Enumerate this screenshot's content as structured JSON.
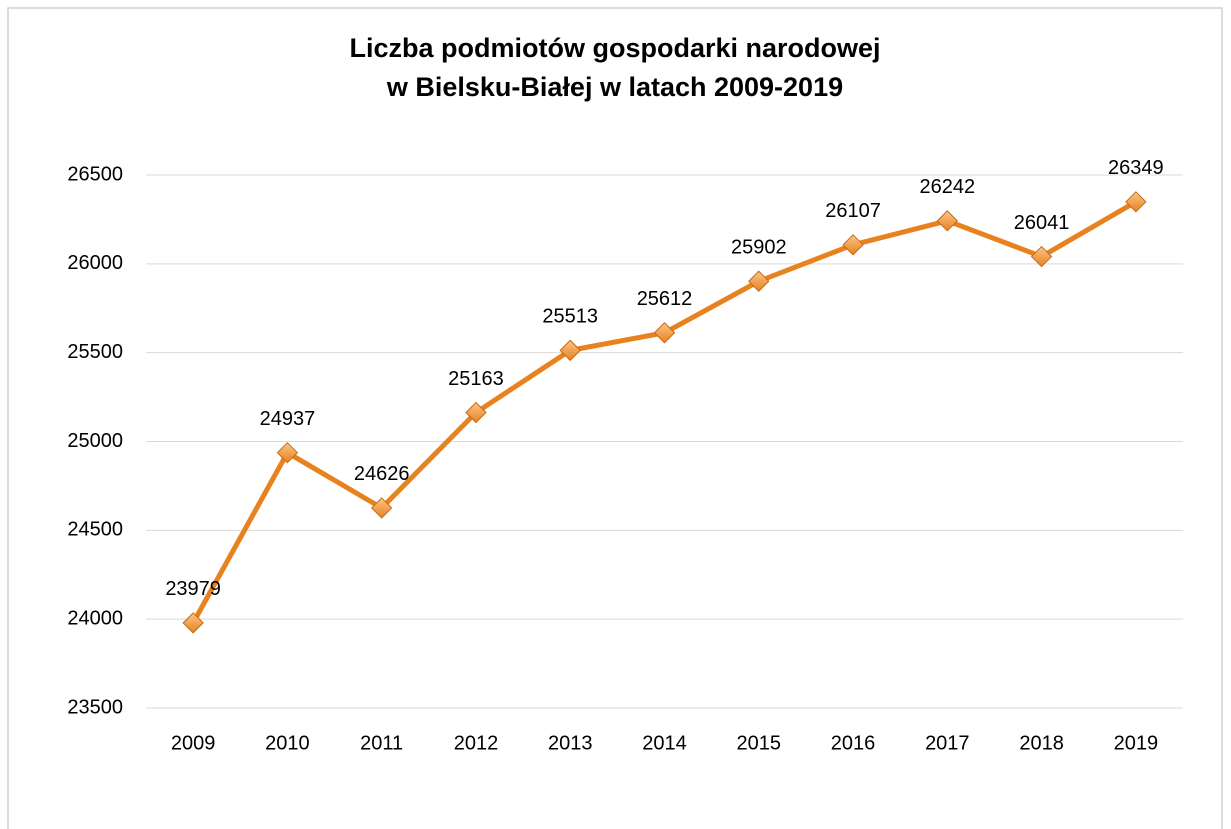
{
  "chart_data": {
    "type": "line",
    "title": [
      "Liczba podmiotów gospodarki narodowej",
      "w Bielsku-Białej w latach 2009-2019"
    ],
    "categories": [
      "2009",
      "2010",
      "2011",
      "2012",
      "2013",
      "2014",
      "2015",
      "2016",
      "2017",
      "2018",
      "2019"
    ],
    "series": [
      {
        "color": "#e8821e",
        "values": [
          23979,
          24937,
          24626,
          25163,
          25513,
          25612,
          25902,
          26107,
          26242,
          26041,
          26349
        ]
      }
    ],
    "ylim": [
      23500,
      26500
    ],
    "yticks": [
      23500,
      24000,
      24500,
      25000,
      25500,
      26000,
      26500
    ],
    "grid": true,
    "data_labels": true
  }
}
